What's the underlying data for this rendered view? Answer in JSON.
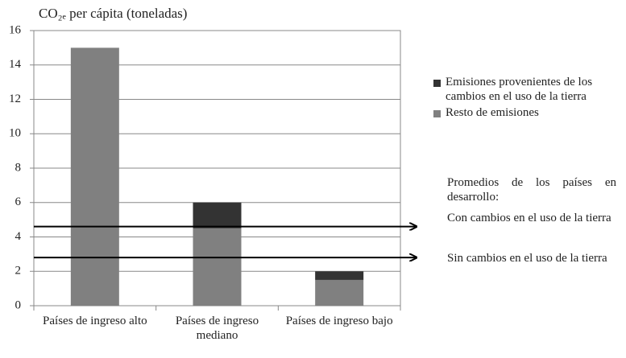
{
  "chart_data": {
    "type": "stacked_bar",
    "title": "CO₂ₑ per cápita (toneladas)",
    "categories": [
      "Países de ingreso alto",
      "Países de ingreso mediano",
      "Países de ingreso bajo"
    ],
    "series": [
      {
        "name": "Resto  de emisiones",
        "color": "#808080",
        "values": [
          15,
          4.5,
          1.5
        ]
      },
      {
        "name": "Emisiones provenientes  de los cambios en el uso de la tierra",
        "color": "#333333",
        "values": [
          0,
          1.5,
          0.5
        ]
      }
    ],
    "ylim": [
      0,
      16
    ],
    "yticks": [
      0,
      2,
      4,
      6,
      8,
      10,
      12,
      14,
      16
    ],
    "grid": true,
    "annotation": "Promedios de los países en desarrollo:",
    "reference_lines": [
      {
        "value": 4.6,
        "label": "Con cambios en el uso de la tierra"
      },
      {
        "value": 2.8,
        "label": "Sin cambios en el uso de la tierra"
      }
    ]
  }
}
